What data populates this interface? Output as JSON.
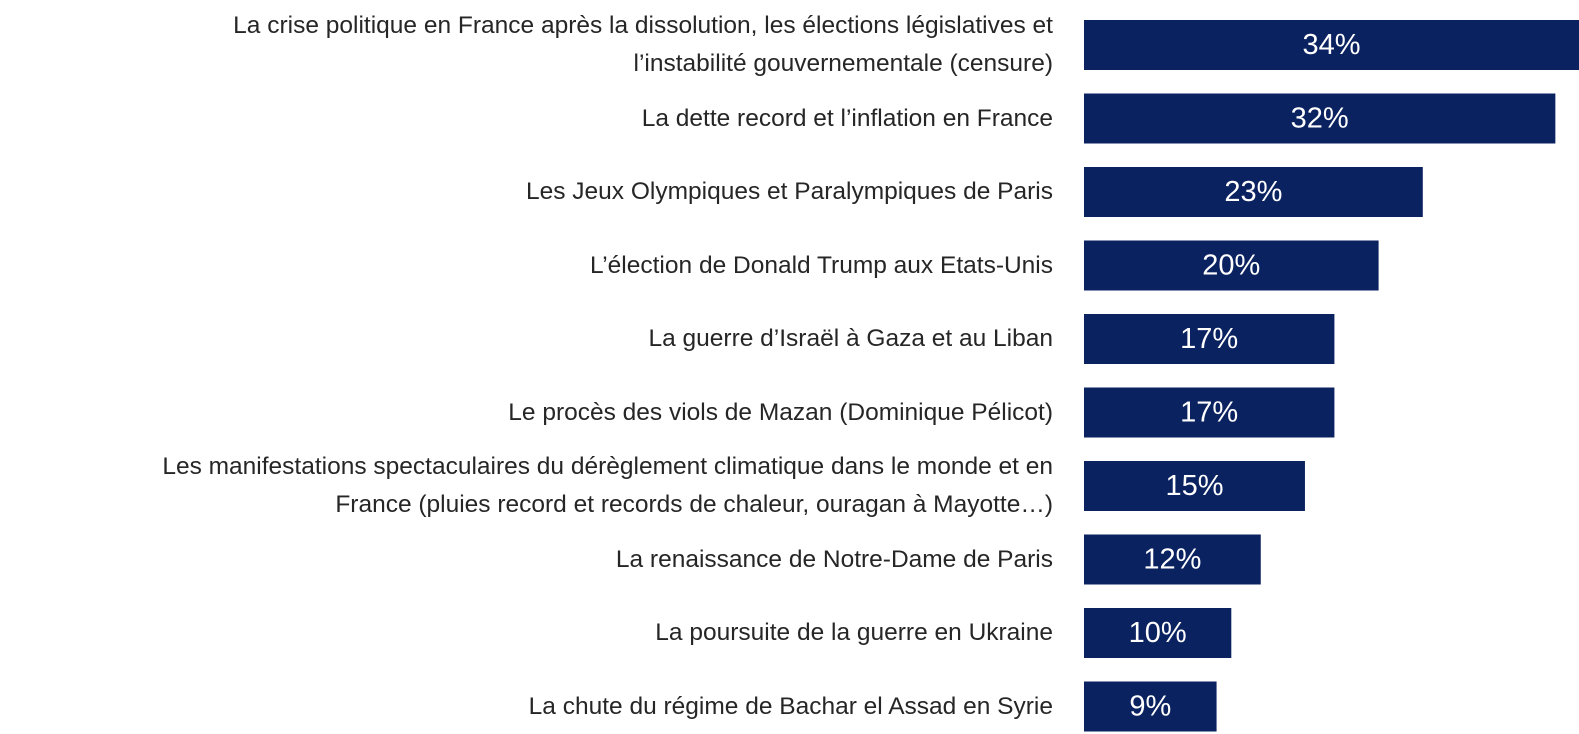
{
  "chart_data": {
    "type": "bar",
    "orientation": "horizontal",
    "color": "#0b2260",
    "categories": [
      "La crise politique en France après la dissolution, les élections législatives et\nl’instabilité gouvernementale (censure)",
      "La dette record et l’inflation en France",
      "Les Jeux Olympiques et Paralympiques de Paris",
      "L’élection de Donald Trump aux Etats-Unis",
      "La guerre d’Israël à Gaza et au Liban",
      "Le procès des viols de Mazan (Dominique Pélicot)",
      "Les manifestations spectaculaires du dérèglement climatique dans le monde et en\nFrance (pluies record et records de chaleur, ouragan à Mayotte…)",
      "La renaissance de Notre-Dame de Paris",
      "La poursuite de la guerre en Ukraine",
      "La chute du régime de Bachar el Assad en Syrie"
    ],
    "values": [
      34,
      32,
      23,
      20,
      17,
      17,
      15,
      12,
      10,
      9
    ],
    "value_labels": [
      "34%",
      "32%",
      "23%",
      "20%",
      "17%",
      "17%",
      "15%",
      "12%",
      "10%",
      "9%"
    ]
  }
}
